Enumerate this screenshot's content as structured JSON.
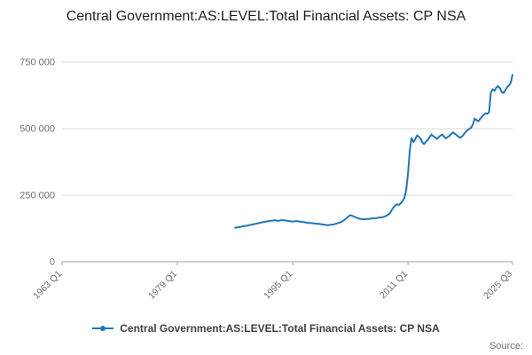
{
  "title": "Central Government:AS:LEVEL:Total Financial Assets: CP NSA",
  "legend": {
    "label": "Central Government:AS:LEVEL:Total Financial Assets: CP NSA"
  },
  "source_label": "Source:",
  "colors": {
    "line": "#1f77b4",
    "grid": "#d9d9d9",
    "axis": "#a6a6a6",
    "tick_text": "#707070",
    "title_text": "#222222",
    "legend_text": "#414042"
  },
  "chart_data": {
    "type": "line",
    "title": "Central Government:AS:LEVEL:Total Financial Assets: CP NSA",
    "xlabel": "",
    "ylabel": "",
    "grid": "horizontal",
    "legend_position": "bottom",
    "x_domain": [
      1963.0,
      2025.5
    ],
    "y_domain": [
      0,
      750000
    ],
    "x_ticks": [
      {
        "v": 1963.0,
        "label": "1963 Q1"
      },
      {
        "v": 1979.0,
        "label": "1979 Q1"
      },
      {
        "v": 1995.0,
        "label": "1995 Q1"
      },
      {
        "v": 2011.0,
        "label": "2011 Q1"
      },
      {
        "v": 2025.5,
        "label": "2025 Q3"
      }
    ],
    "y_ticks": [
      {
        "v": 0,
        "label": "0"
      },
      {
        "v": 250000,
        "label": "250 000"
      },
      {
        "v": 500000,
        "label": "500 000"
      },
      {
        "v": 750000,
        "label": "750 000"
      }
    ],
    "series": [
      {
        "name": "Central Government:AS:LEVEL:Total Financial Assets: CP NSA",
        "x_start": 1987.0,
        "x_step": 0.25,
        "values": [
          128000,
          129000,
          130000,
          131000,
          133000,
          134000,
          135000,
          136000,
          138000,
          139000,
          141000,
          142000,
          144000,
          145000,
          147000,
          148000,
          150000,
          151000,
          152000,
          153000,
          154000,
          155000,
          156000,
          155000,
          154000,
          155000,
          157000,
          156000,
          155000,
          154000,
          153000,
          152000,
          151000,
          152000,
          153000,
          152000,
          151000,
          150000,
          149000,
          148000,
          147000,
          146000,
          146000,
          145000,
          144000,
          143000,
          143000,
          142000,
          141000,
          140000,
          139000,
          138000,
          138000,
          139000,
          140000,
          141000,
          143000,
          145000,
          147000,
          150000,
          154000,
          159000,
          165000,
          171000,
          175000,
          173000,
          170000,
          167000,
          164000,
          162000,
          161000,
          160000,
          160000,
          161000,
          161000,
          162000,
          163000,
          163000,
          164000,
          165000,
          166000,
          167000,
          168000,
          170000,
          173000,
          177000,
          183000,
          195000,
          205000,
          212000,
          216000,
          214000,
          220000,
          228000,
          240000,
          270000,
          330000,
          420000,
          465000,
          450000,
          460000,
          475000,
          470000,
          462000,
          448000,
          442000,
          452000,
          458000,
          468000,
          478000,
          472000,
          468000,
          462000,
          468000,
          474000,
          478000,
          470000,
          464000,
          468000,
          473000,
          480000,
          486000,
          481000,
          476000,
          470000,
          466000,
          471000,
          479000,
          488000,
          494000,
          499000,
          504000,
          515000,
          538000,
          532000,
          528000,
          536000,
          545000,
          552000,
          558000,
          556000,
          562000,
          635000,
          648000,
          642000,
          654000,
          660000,
          652000,
          638000,
          634000,
          644000,
          656000,
          662000,
          672000,
          702000
        ]
      }
    ]
  }
}
